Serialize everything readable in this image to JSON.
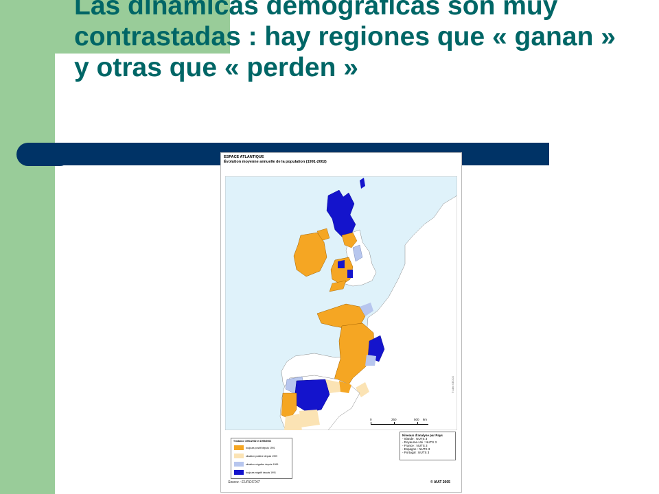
{
  "slide": {
    "title": "Las dinámicas demográficas son muy contrastadas : hay regiones que « ganan » y otras que « perden »"
  },
  "figure": {
    "header_line1": "ESPACE ATLANTIQUE",
    "header_line2": "Évolution moyenne annuelle de la population (1991-2002)",
    "legend": {
      "title": "Tendance 1991/2002 et 1999/2002",
      "items": [
        {
          "label": "toujours positif depuis 1991",
          "color": "#f5a623"
        },
        {
          "label": "situation positive depuis 1999",
          "color": "#fbe3b4"
        },
        {
          "label": "situation négative depuis 1999",
          "color": "#b7c6ee"
        },
        {
          "label": "toujours négatif depuis 1991",
          "color": "#1414cc"
        }
      ]
    },
    "nuts": {
      "title": "Niveaux d'analyse par Pays",
      "lines": [
        "- Irlande : NUTS 3",
        "- Royaume-Uni : NUTS 3",
        "- France : NUTS 3",
        "- Espagne : NUTS 3",
        "- Portugal : NUTS 3"
      ]
    },
    "scale": {
      "t0": "0",
      "t1": "250",
      "t2": "500",
      "unit": "km"
    },
    "source": "Source : EUROSTAT",
    "copyright": "© IAAT 2005",
    "side_credit": "© Atlas GEOCO"
  },
  "colors": {
    "green_band": "#99cc99",
    "title_text": "#006666",
    "navy_bar": "#003366",
    "sea": "#dff2fa",
    "land": "#ffffff"
  }
}
